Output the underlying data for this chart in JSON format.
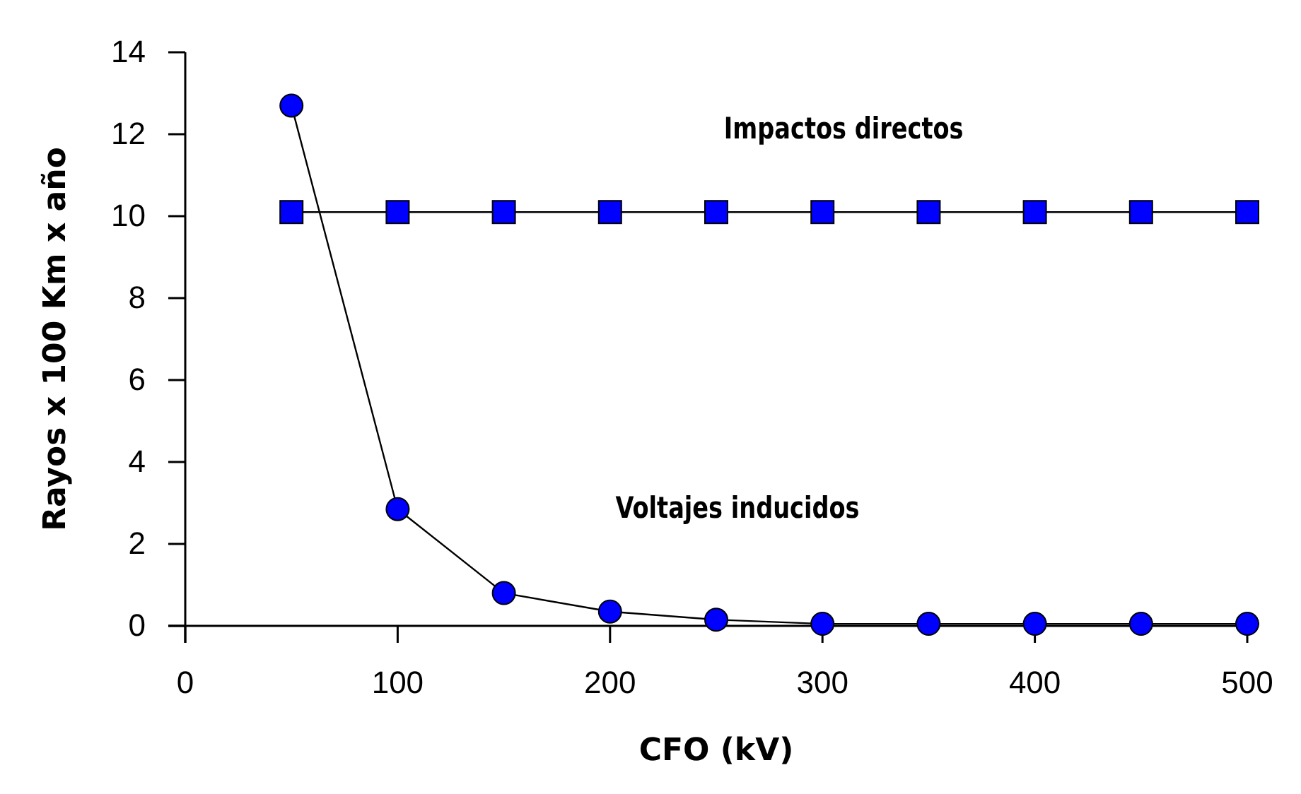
{
  "chart_data": {
    "type": "line",
    "xlabel": "CFO (kV)",
    "ylabel": "Rayos x 100 Km x año",
    "x": [
      50,
      100,
      150,
      200,
      250,
      300,
      350,
      400,
      450,
      500
    ],
    "series": [
      {
        "name": "Impactos directos",
        "color": "#0000ff",
        "marker": "square",
        "values": [
          10.1,
          10.1,
          10.1,
          10.1,
          10.1,
          10.1,
          10.1,
          10.1,
          10.1,
          10.1
        ]
      },
      {
        "name": "Voltajes inducidos",
        "color": "#0000ff",
        "marker": "circle",
        "values": [
          12.7,
          2.85,
          0.8,
          0.35,
          0.15,
          0.05,
          0.05,
          0.05,
          0.05,
          0.05
        ]
      }
    ],
    "xlim": [
      0,
      500
    ],
    "xticks": [
      0,
      100,
      200,
      300,
      400,
      500
    ],
    "ylim": [
      0,
      14
    ],
    "yticks": [
      0,
      2,
      4,
      6,
      8,
      10,
      12,
      14
    ],
    "grid": false,
    "legend": false
  }
}
